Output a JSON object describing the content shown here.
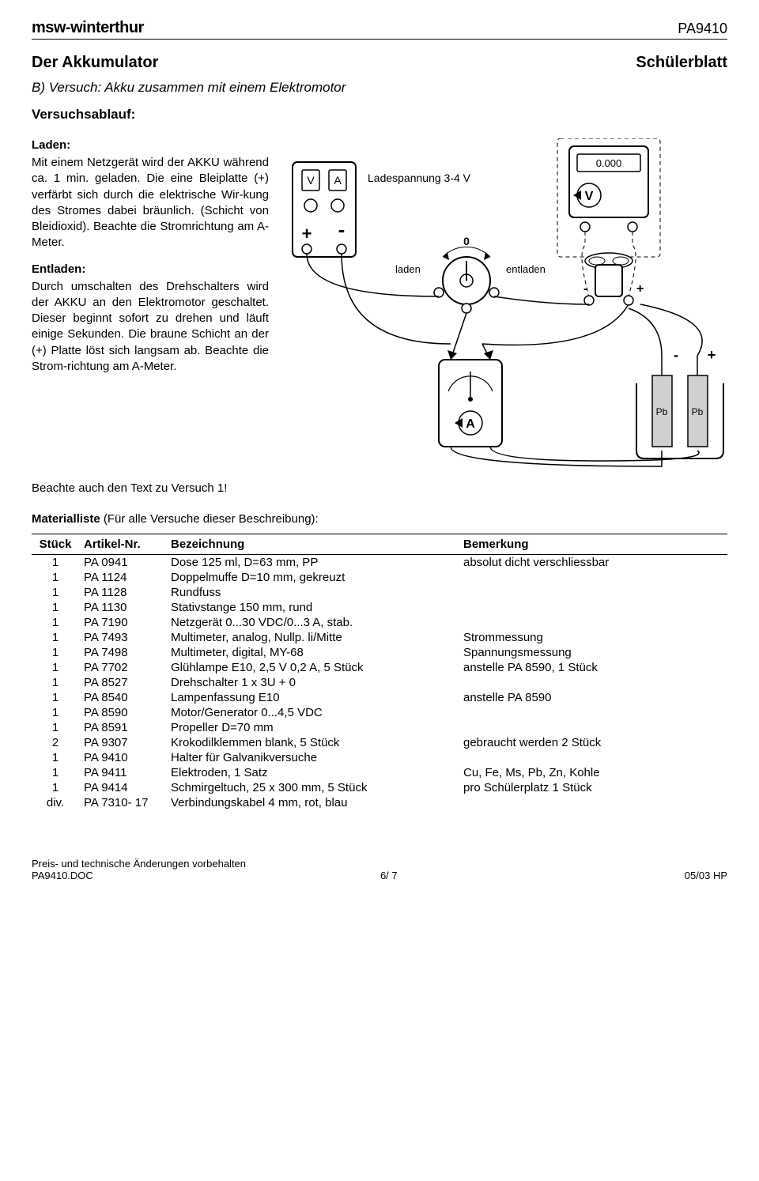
{
  "header": {
    "logo_bold": "msw",
    "logo_rest": "-winterthur",
    "doc_number": "PA9410"
  },
  "titles": {
    "main": "Der Akkumulator",
    "right": "Schülerblatt",
    "sub": "B)  Versuch: Akku zusammen mit einem Elektromotor",
    "section": "Versuchsablauf:"
  },
  "laden": {
    "head": "Laden:",
    "text": "Mit einem Netzgerät wird der AKKU während ca. 1 min. geladen. Die eine Bleiplatte (+) verfärbt sich durch die elektrische Wir-kung des Stromes dabei bräunlich. (Schicht von Bleidioxid). Beachte die Stromrichtung am A-Meter."
  },
  "entladen": {
    "head": "Entladen:",
    "text": "Durch umschalten des Drehschalters wird der AKKU an den Elektromotor geschaltet. Dieser beginnt sofort zu drehen und läuft einige Sekunden. Die braune Schicht an der (+) Platte löst sich langsam ab. Beachte die Strom-richtung am A-Meter."
  },
  "note": "Beachte auch den Text zu Versuch 1!",
  "materials": {
    "heading": "Materialliste (Für alle Versuche dieser Beschreibung):",
    "columns": [
      "Stück",
      "Artikel-Nr.",
      "Bezeichnung",
      "Bemerkung"
    ],
    "rows": [
      [
        "1",
        "PA 0941",
        "Dose 125 ml, D=63 mm, PP",
        "absolut dicht verschliessbar"
      ],
      [
        "1",
        "PA 1124",
        "Doppelmuffe D=10 mm, gekreuzt",
        ""
      ],
      [
        "1",
        "PA 1128",
        "Rundfuss",
        ""
      ],
      [
        "1",
        "PA 1130",
        "Stativstange 150 mm, rund",
        ""
      ],
      [
        "1",
        "PA 7190",
        "Netzgerät 0...30 VDC/0...3 A, stab.",
        ""
      ],
      [
        "1",
        "PA 7493",
        "Multimeter, analog, Nullp. li/Mitte",
        "Strommessung"
      ],
      [
        "1",
        "PA 7498",
        "Multimeter, digital, MY-68",
        "Spannungsmessung"
      ],
      [
        "1",
        "PA 7702",
        "Glühlampe E10, 2,5 V 0,2 A, 5 Stück",
        "anstelle PA 8590, 1 Stück"
      ],
      [
        "1",
        "PA 8527",
        "Drehschalter 1 x 3U + 0",
        ""
      ],
      [
        "1",
        "PA 8540",
        "Lampenfassung E10",
        "anstelle PA 8590"
      ],
      [
        "1",
        "PA 8590",
        "Motor/Generator 0...4,5 VDC",
        ""
      ],
      [
        "1",
        "PA 8591",
        "Propeller D=70 mm",
        ""
      ],
      [
        "2",
        "PA 9307",
        "Krokodilklemmen blank, 5 Stück",
        "gebraucht werden 2 Stück"
      ],
      [
        "1",
        "PA 9410",
        "Halter für Galvanikversuche",
        ""
      ],
      [
        "1",
        "PA 9411",
        "Elektroden, 1 Satz",
        "Cu, Fe, Ms, Pb, Zn, Kohle"
      ],
      [
        "1",
        "PA 9414",
        "Schmirgeltuch, 25 x 300 mm, 5 Stück",
        "pro Schülerplatz 1 Stück"
      ],
      [
        "div.",
        "PA 7310- 17",
        "Verbindungskabel 4 mm, rot, blau",
        ""
      ]
    ]
  },
  "diagram": {
    "ladespannung": "Ladespannung 3-4 V",
    "laden": "laden",
    "entladen": "entladen",
    "zero": "0",
    "V": "V",
    "A": "A",
    "display": "0.000",
    "plus": "+",
    "minus": "-",
    "Pb": "Pb"
  },
  "footer": {
    "line1": "Preis- und technische Änderungen vorbehalten",
    "docfile": "PA9410.DOC",
    "page": "6/ 7",
    "rev": "05/03 HP"
  }
}
